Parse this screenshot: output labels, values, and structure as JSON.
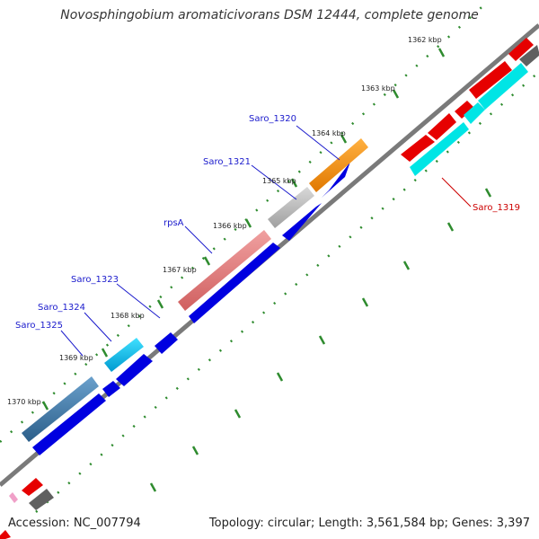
{
  "title": "Novosphingobium aromaticivorans DSM 12444, complete genome",
  "footer": {
    "accession": "Accession: NC_007794",
    "summary": "Topology: circular; Length: 3,561,584 bp; Genes: 3,397"
  },
  "colors": {
    "backbone": "#7a7a7a",
    "tick": "#2e8b2e",
    "plus_strand_default": "#0000e0",
    "label_blue": "#1a1acc",
    "label_red": "#cc0000"
  },
  "kbp_labels": [
    "1362 kbp",
    "1363 kbp",
    "1364 kbp",
    "1365 kbp",
    "1366 kbp",
    "1367 kbp",
    "1368 kbp",
    "1369 kbp",
    "1370 kbp"
  ],
  "gene_labels": [
    {
      "text": "Saro_1319",
      "color": "#cc0000"
    },
    {
      "text": "Saro_1320",
      "color": "#1a1acc"
    },
    {
      "text": "Saro_1321",
      "color": "#1a1acc"
    },
    {
      "text": "rpsA",
      "color": "#1a1acc"
    },
    {
      "text": "Saro_1323",
      "color": "#1a1acc"
    },
    {
      "text": "Saro_1324",
      "color": "#1a1acc"
    },
    {
      "text": "Saro_1325",
      "color": "#1a1acc"
    }
  ],
  "feature_colors": [
    "#e60000",
    "#00e5e5",
    "#ff8c00",
    "#b0b0b0",
    "#e57a7a",
    "#00b0e6",
    "#3a78a8",
    "#606060",
    "#f0a0c8"
  ]
}
